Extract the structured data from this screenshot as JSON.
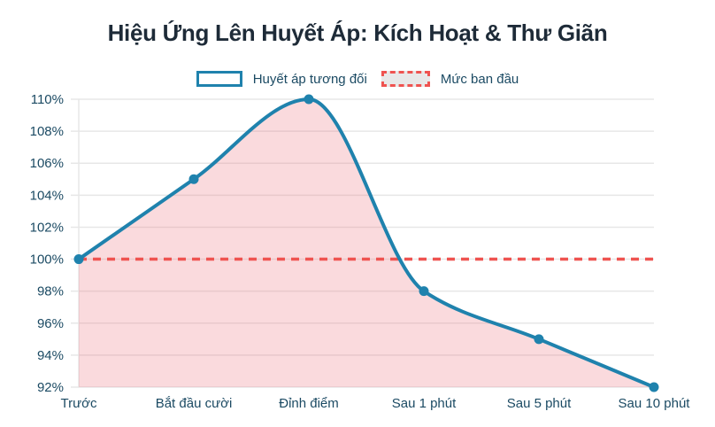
{
  "chart_data": {
    "type": "area",
    "title": "Hiệu Ứng Lên Huyết Áp: Kích Hoạt & Thư Giãn",
    "categories": [
      "Trước",
      "Bắt đầu cười",
      "Đỉnh điểm",
      "Sau 1 phút",
      "Sau 5 phút",
      "Sau 10 phút"
    ],
    "series": [
      {
        "name": "Huyết áp tương đối",
        "values": [
          100,
          105,
          110,
          98,
          95,
          92
        ]
      }
    ],
    "baseline": {
      "name": "Mức ban đầu",
      "value": 100,
      "style": "dashed"
    },
    "ylim": [
      92,
      110
    ],
    "yticks": [
      {
        "value": 92,
        "label": "92%"
      },
      {
        "value": 94,
        "label": "94%"
      },
      {
        "value": 96,
        "label": "96%"
      },
      {
        "value": 98,
        "label": "98%"
      },
      {
        "value": 100,
        "label": "100%"
      },
      {
        "value": 102,
        "label": "102%"
      },
      {
        "value": 104,
        "label": "104%"
      },
      {
        "value": 106,
        "label": "106%"
      },
      {
        "value": 108,
        "label": "108%"
      },
      {
        "value": 110,
        "label": "110%"
      }
    ],
    "grid": true,
    "legend_position": "top",
    "colors": {
      "line": "#1f82ad",
      "point": "#1f82ad",
      "area_fill": "rgba(236,106,120,0.25)",
      "baseline": "#ef5350",
      "grid": "#e7e7e7",
      "axis_label": "#1b4a63",
      "title": "#1e2b38",
      "baseline_swatch_fill": "#e8e8e8"
    }
  }
}
